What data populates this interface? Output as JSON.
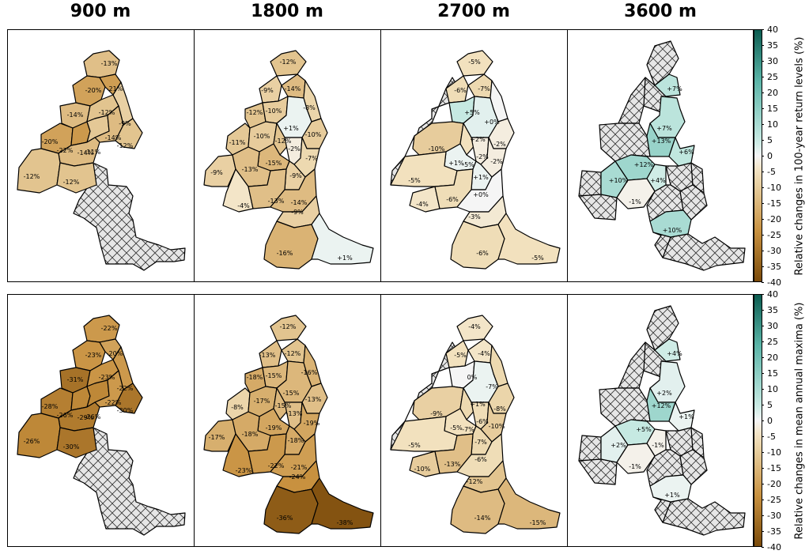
{
  "columns": [
    "900 m",
    "1800 m",
    "2700 m",
    "3600 m"
  ],
  "colorbar": {
    "min": -40,
    "max": 40,
    "ticks": [
      "40",
      "35",
      "30",
      "25",
      "20",
      "15",
      "10",
      "5",
      "0",
      "-5",
      "-10",
      "-15",
      "-20",
      "-25",
      "-30",
      "-35",
      "-40"
    ],
    "colors": {
      "neg_max": "#7a4a0a",
      "neg_mid": "#c8913f",
      "neg_light": "#f2e2bf",
      "zero": "#f5f5f5",
      "pos_light": "#c7eae3",
      "pos_mid": "#5ab4a7",
      "pos_max": "#0b5c50"
    }
  },
  "rows": [
    {
      "label": "Relative changes in 100-year return levels (%)",
      "panels": [
        {
          "labels": [
            "-13%",
            "-20%",
            "-21%",
            "-14%",
            "-12%",
            "-9%",
            "-20%",
            "-22%",
            "-11%",
            "-14%",
            "-12%",
            "-14%",
            "-12%",
            "-12%"
          ],
          "values": [
            -13,
            -20,
            -21,
            -14,
            -12,
            -9,
            -20,
            -22,
            -11,
            -14,
            -12,
            -14,
            -12,
            -12
          ]
        },
        {
          "labels": [
            "-12%",
            "-9%",
            "-14%",
            "-12%",
            "-10%",
            "-8%",
            "+1%",
            "-10%",
            "-11%",
            "-10%",
            "-12%",
            "-15%",
            "-2%",
            "-9%",
            "-13%",
            "-7%",
            "-9%",
            "-4%",
            "-13%",
            "-14%",
            "-9%",
            "-16%",
            "+1%"
          ],
          "values": [
            -12,
            -9,
            -14,
            -12,
            -10,
            -8,
            1,
            -10,
            -11,
            -10,
            -12,
            -15,
            -2,
            -9,
            -13,
            -7,
            -9,
            -4,
            -13,
            -14,
            -9,
            -16,
            1
          ]
        },
        {
          "labels": [
            "-5%",
            "-6%",
            "-7%",
            "+5%",
            "+0%",
            "+2%",
            "-2%",
            "-10%",
            "-5%",
            "+1%",
            "-2%",
            "-5%",
            "-2%",
            "+1%",
            "-4%",
            "-6%",
            "+0%",
            "-3%",
            "-6%",
            "-5%"
          ],
          "values": [
            -5,
            -6,
            -7,
            5,
            0,
            2,
            -2,
            -10,
            -5,
            1,
            -2,
            -5,
            -2,
            1,
            -4,
            -6,
            0,
            -3,
            -6,
            -5
          ]
        },
        {
          "labels": [
            "+7%",
            "+7%",
            "+13%",
            "+6%",
            "+12%",
            "+10%",
            "+4%",
            "-1%",
            "+10%"
          ],
          "values": [
            7,
            7,
            13,
            6,
            12,
            10,
            4,
            -1,
            10
          ]
        }
      ]
    },
    {
      "label": "Relative changes in mean annual maxima (%)",
      "panels": [
        {
          "labels": [
            "-22%",
            "-23%",
            "-20%",
            "-31%",
            "-23%",
            "-22%",
            "-28%",
            "-26%",
            "-26%",
            "-22%",
            "-30%",
            "-29%",
            "-26%",
            "-30%"
          ],
          "values": [
            -22,
            -23,
            -20,
            -31,
            -23,
            -22,
            -28,
            -26,
            -26,
            -22,
            -30,
            -29,
            -26,
            -30
          ]
        },
        {
          "labels": [
            "-12%",
            "-13%",
            "-12%",
            "-18%",
            "-15%",
            "-16%",
            "-15%",
            "-13%",
            "-8%",
            "-17%",
            "-15%",
            "-19%",
            "-13%",
            "-17%",
            "-18%",
            "-19%",
            "-18%",
            "-23%",
            "-22%",
            "-21%",
            "-24%",
            "-36%",
            "-38%"
          ],
          "values": [
            -12,
            -13,
            -12,
            -18,
            -15,
            -16,
            -15,
            -13,
            -8,
            -17,
            -15,
            -19,
            -13,
            -17,
            -18,
            -19,
            -18,
            -23,
            -22,
            -21,
            -24,
            -36,
            -38
          ]
        },
        {
          "labels": [
            "-4%",
            "-5%",
            "-4%",
            "0%",
            "-7%",
            "+1%",
            "-8%",
            "-9%",
            "-7%",
            "-5%",
            "-6%",
            "-5%",
            "-10%",
            "-7%",
            "-10%",
            "-13%",
            "-6%",
            "-12%",
            "-14%",
            "-15%"
          ],
          "values": [
            -4,
            -5,
            -4,
            0,
            -7,
            1,
            -8,
            -9,
            -7,
            -5,
            -6,
            -5,
            -10,
            -7,
            -10,
            -13,
            -6,
            -12,
            -14,
            -15
          ]
        },
        {
          "labels": [
            "+4%",
            "+2%",
            "+12%",
            "+1%",
            "+5%",
            "+2%",
            "-1%",
            "-1%",
            "+1%"
          ],
          "values": [
            4,
            2,
            12,
            1,
            5,
            2,
            -1,
            -1,
            1
          ]
        }
      ]
    }
  ]
}
